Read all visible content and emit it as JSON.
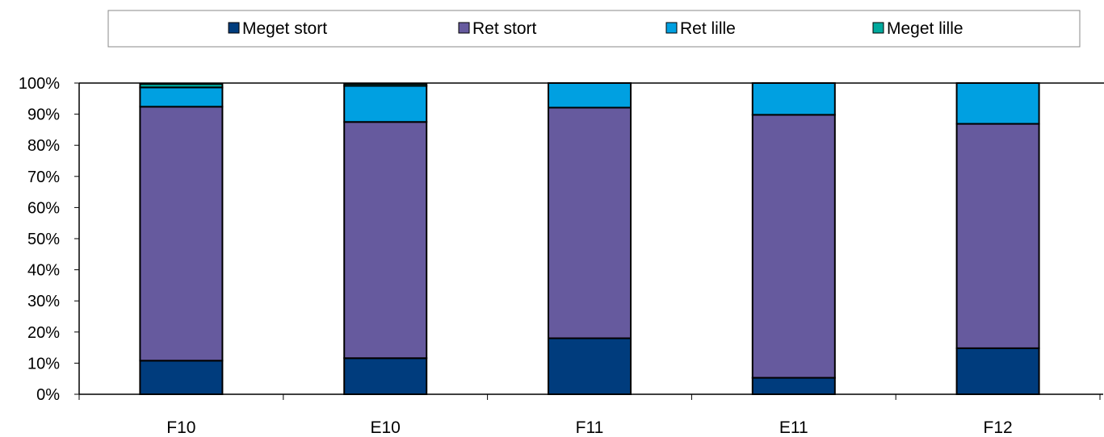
{
  "chart_data": {
    "type": "bar",
    "stacked": true,
    "categories": [
      "F10",
      "E10",
      "F11",
      "E11",
      "F12"
    ],
    "series": [
      {
        "name": "Meget stort",
        "color": "#003C7D",
        "values": [
          10.8,
          11.6,
          18.0,
          5.3,
          14.8
        ]
      },
      {
        "name": "Ret stort",
        "color": "#665A9E",
        "values": [
          81.6,
          75.9,
          74.1,
          84.5,
          72.1
        ]
      },
      {
        "name": "Ret lille",
        "color": "#00A0E1",
        "values": [
          6.2,
          11.6,
          7.9,
          10.2,
          13.1
        ]
      },
      {
        "name": "Meget lille",
        "color": "#00A99D",
        "values": [
          1.1,
          0.6,
          0.0,
          0.0,
          0.0
        ]
      }
    ],
    "ylim": [
      0,
      100
    ],
    "yticks": [
      "0%",
      "10%",
      "20%",
      "30%",
      "40%",
      "50%",
      "60%",
      "70%",
      "80%",
      "90%",
      "100%"
    ],
    "grid": false,
    "legend_position": "top"
  }
}
